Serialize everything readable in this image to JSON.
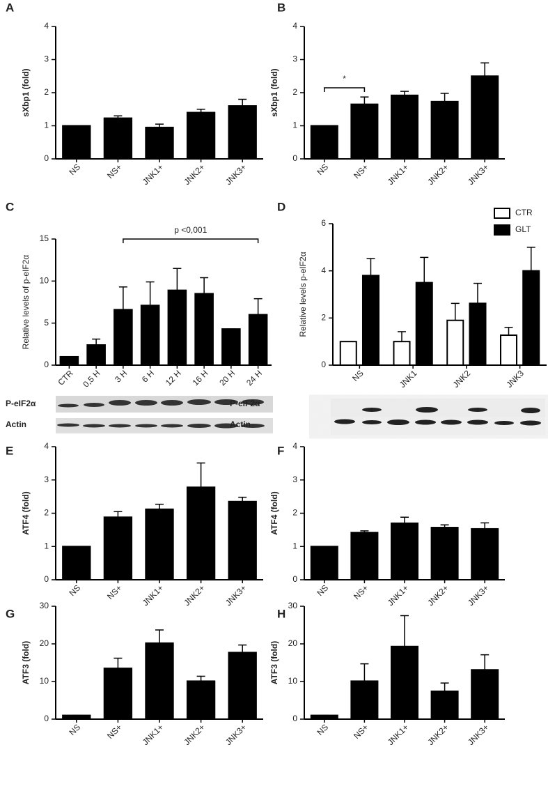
{
  "chart_data": [
    {
      "type": "bar",
      "label": "A",
      "ylabel": "sXbp1 (fold)",
      "categories": [
        "NS",
        "NS+",
        "JNK1+",
        "JNK2+",
        "JNK3+"
      ],
      "values": [
        1,
        1.23,
        0.95,
        1.4,
        1.6
      ],
      "errors": [
        0,
        0.07,
        0.1,
        0.1,
        0.2
      ],
      "color": "#000000",
      "ylim": [
        0,
        4
      ],
      "yticks": [
        0,
        1,
        2,
        3,
        4
      ]
    },
    {
      "type": "bar",
      "label": "B",
      "ylabel": "sXbp1 (fold)",
      "categories": [
        "NS",
        "NS+",
        "JNK1+",
        "JNK2+",
        "JNK3+"
      ],
      "values": [
        1,
        1.65,
        1.92,
        1.73,
        2.5
      ],
      "errors": [
        0,
        0.22,
        0.12,
        0.25,
        0.4
      ],
      "color": "#000000",
      "ylim": [
        0,
        4
      ],
      "yticks": [
        0,
        1,
        2,
        3,
        4
      ],
      "annotation": "*"
    },
    {
      "type": "bar",
      "label": "C",
      "ylabel": "Relative levels of p-eIF2α",
      "categories": [
        "CTR",
        "0,5 H",
        "3 H",
        "6 H",
        "12 H",
        "16 H",
        "20 H",
        "24 H"
      ],
      "values": [
        1,
        2.4,
        6.6,
        7.1,
        8.9,
        8.5,
        4.3,
        6.0
      ],
      "errors": [
        0,
        0.7,
        2.7,
        2.8,
        2.6,
        1.9,
        0,
        1.9
      ],
      "color": "#000000",
      "ylim": [
        0,
        15
      ],
      "yticks": [
        0,
        5,
        10,
        15
      ],
      "annotation": "p <0,001",
      "blot_labels": [
        "P-eIF2α",
        "Actin"
      ]
    },
    {
      "type": "grouped_bar",
      "label": "D",
      "ylabel": "Relative levels p-eIF2α",
      "categories": [
        "NS",
        "JNK1",
        "JNK2",
        "JNK3"
      ],
      "series": [
        {
          "name": "CTR",
          "color": "#ffffff",
          "values": [
            1,
            1,
            1.9,
            1.27
          ],
          "errors": [
            0,
            0.42,
            0.72,
            0.33
          ]
        },
        {
          "name": "GLT",
          "color": "#000000",
          "values": [
            3.8,
            3.5,
            2.62,
            4.0
          ],
          "errors": [
            0.72,
            1.07,
            0.85,
            1.0
          ]
        }
      ],
      "ylim": [
        0,
        6
      ],
      "yticks": [
        0,
        2,
        4,
        6
      ],
      "legend": "top-right",
      "blot_labels": [
        "P-eIF2α",
        "Actin"
      ]
    },
    {
      "type": "bar",
      "label": "E",
      "ylabel": "ATF4 (fold)",
      "categories": [
        "NS",
        "NS+",
        "JNK1+",
        "JNK2+",
        "JNK3+"
      ],
      "values": [
        1,
        1.88,
        2.12,
        2.78,
        2.35
      ],
      "errors": [
        0,
        0.17,
        0.15,
        0.73,
        0.13
      ],
      "color": "#000000",
      "ylim": [
        0,
        4
      ],
      "yticks": [
        0,
        1,
        2,
        3,
        4
      ]
    },
    {
      "type": "bar",
      "label": "F",
      "ylabel": "ATF4 (fold)",
      "categories": [
        "NS",
        "NS+",
        "JNK1+",
        "JNK2+",
        "JNK3+"
      ],
      "values": [
        1,
        1.42,
        1.7,
        1.57,
        1.53
      ],
      "errors": [
        0,
        0.05,
        0.18,
        0.08,
        0.18
      ],
      "color": "#000000",
      "ylim": [
        0,
        4
      ],
      "yticks": [
        0,
        1,
        2,
        3,
        4
      ]
    },
    {
      "type": "bar",
      "label": "G",
      "ylabel": "ATF3 (fold)",
      "categories": [
        "NS",
        "NS+",
        "JNK1+",
        "JNK2+",
        "JNK3+"
      ],
      "values": [
        1,
        13.5,
        20.2,
        10.1,
        17.7
      ],
      "errors": [
        0,
        2.7,
        3.5,
        1.3,
        2.0
      ],
      "color": "#000000",
      "ylim": [
        0,
        30
      ],
      "yticks": [
        0,
        10,
        20,
        30
      ]
    },
    {
      "type": "bar",
      "label": "H",
      "ylabel": "ATF3 (fold)",
      "categories": [
        "NS",
        "NS+",
        "JNK1+",
        "JNK2+",
        "JNK3+"
      ],
      "values": [
        1,
        10.1,
        19.3,
        7.4,
        13.1
      ],
      "errors": [
        0,
        4.6,
        8.2,
        2.2,
        4.0
      ],
      "color": "#000000",
      "ylim": [
        0,
        30
      ],
      "yticks": [
        0,
        10,
        20,
        30
      ]
    }
  ]
}
